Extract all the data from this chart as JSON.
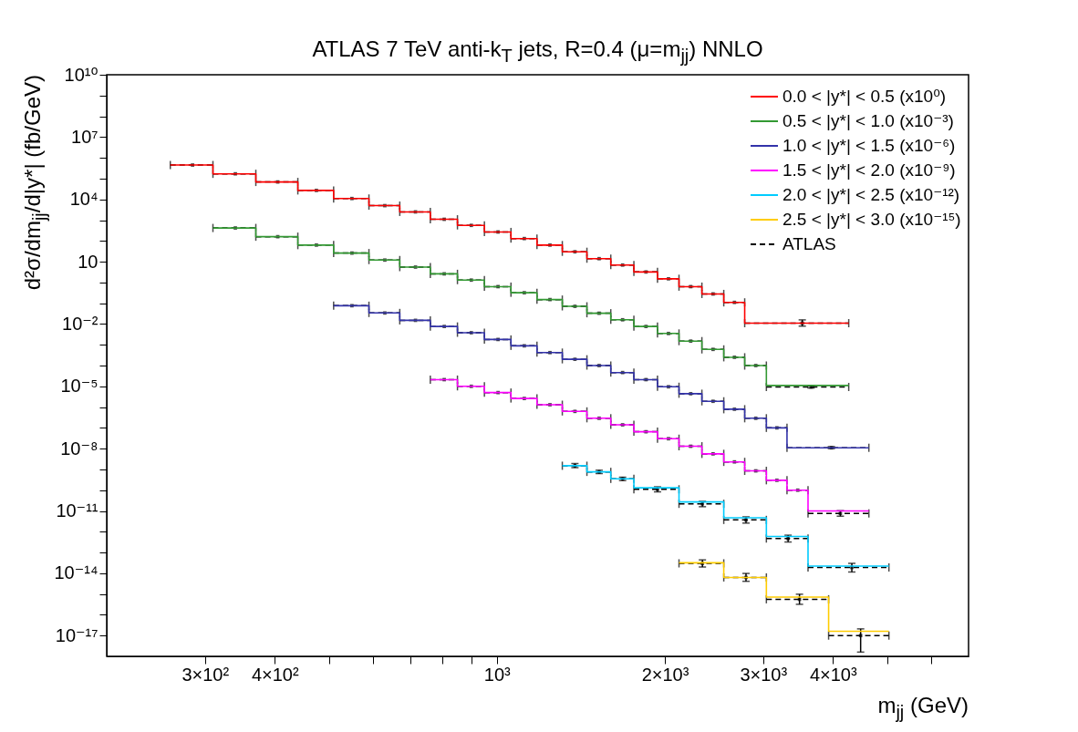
{
  "chart_data": {
    "type": "step",
    "title": "ATLAS 7 TeV anti-k$_{T}$ jets, R=0.4 (μ=m$_{jj}$) NNLO",
    "xlabel": "m$_{jj}$ (GeV)",
    "ylabel": "d²σ/dm$_{jj}$/d|y*| (fb/GeV)",
    "log": "xy",
    "grid": false,
    "legend": "top right",
    "xlim": [
      200,
      7000
    ],
    "ylim": [
      1e-18,
      10000000000.0
    ],
    "xticks": [
      {
        "value": 300,
        "label": "3×10²"
      },
      {
        "value": 400,
        "label": "4×10²"
      },
      {
        "value": 500,
        "label": null
      },
      {
        "value": 600,
        "label": null
      },
      {
        "value": 700,
        "label": null
      },
      {
        "value": 800,
        "label": null
      },
      {
        "value": 900,
        "label": null
      },
      {
        "value": 1000,
        "label": "10³"
      },
      {
        "value": 2000,
        "label": "2×10³"
      },
      {
        "value": 3000,
        "label": "3×10³"
      },
      {
        "value": 4000,
        "label": "4×10³"
      },
      {
        "value": 5000,
        "label": null
      },
      {
        "value": 6000,
        "label": null
      }
    ],
    "yticks": [
      {
        "value": 10000000000.0,
        "label": "10¹⁰"
      },
      {
        "value": 1000000000.0,
        "label": null
      },
      {
        "value": 100000000.0,
        "label": null
      },
      {
        "value": 10000000.0,
        "label": "10⁷"
      },
      {
        "value": 1000000.0,
        "label": null
      },
      {
        "value": 100000.0,
        "label": null
      },
      {
        "value": 10000.0,
        "label": "10⁴"
      },
      {
        "value": 1000,
        "label": null
      },
      {
        "value": 100,
        "label": null
      },
      10,
      {
        "value": 1,
        "label": null
      },
      {
        "value": 0.1,
        "label": null
      },
      {
        "value": 0.01,
        "label": "10⁻²"
      },
      {
        "value": 0.001,
        "label": null
      },
      {
        "value": 0.0001,
        "label": null
      },
      {
        "value": 1e-05,
        "label": "10⁻⁵"
      },
      {
        "value": 1e-06,
        "label": null
      },
      {
        "value": 1e-07,
        "label": null
      },
      {
        "value": 1e-08,
        "label": "10⁻⁸"
      },
      {
        "value": 1e-09,
        "label": null
      },
      {
        "value": 1e-10,
        "label": null
      },
      {
        "value": 1e-11,
        "label": "10⁻¹¹"
      },
      {
        "value": 1e-12,
        "label": null
      },
      {
        "value": 1e-13,
        "label": null
      },
      {
        "value": 1e-14,
        "label": "10⁻¹⁴"
      },
      {
        "value": 1e-15,
        "label": null
      },
      {
        "value": 1e-16,
        "label": null
      },
      {
        "value": 1e-17,
        "label": "10⁻¹⁷"
      }
    ],
    "series": [
      {
        "name": "0.0 < |y*| < 0.5 (x10⁰)",
        "color": "#ff0000",
        "x": [
          260,
          310,
          370,
          440,
          510,
          590,
          670,
          760,
          850,
          950,
          1060,
          1180,
          1310,
          1450,
          1600,
          1760,
          1940,
          2120,
          2330,
          2550,
          2780,
          4270
        ],
        "values": [
          450000,
          170000,
          69000,
          27000,
          11000,
          5000,
          2500,
          1100,
          560,
          270,
          130,
          63,
          30,
          14,
          6.9,
          3.2,
          1.5,
          0.63,
          0.28,
          0.11,
          0.011,
          0.011
        ]
      },
      {
        "name": "0.5 < |y*| < 1.0 (x10⁻³)",
        "color": "#339933",
        "x": [
          310,
          370,
          440,
          510,
          590,
          670,
          760,
          850,
          950,
          1060,
          1180,
          1310,
          1450,
          1600,
          1760,
          1940,
          2120,
          2330,
          2550,
          2780,
          3040,
          4270
        ],
        "values": [
          420,
          160,
          63,
          26,
          12,
          5.5,
          2.6,
          1.3,
          0.63,
          0.32,
          0.15,
          0.071,
          0.033,
          0.016,
          0.0076,
          0.0035,
          0.0015,
          0.0006,
          0.00025,
          0.0001,
          1.1e-05,
          1.1e-05
        ]
      },
      {
        "name": "1.0 < |y*| < 1.5 (x10⁻⁶)",
        "color": "#3333aa",
        "x": [
          510,
          590,
          670,
          760,
          850,
          950,
          1060,
          1180,
          1310,
          1450,
          1600,
          1760,
          1940,
          2120,
          2330,
          2550,
          2780,
          3040,
          3310,
          4640
        ],
        "values": [
          0.076,
          0.034,
          0.015,
          0.0076,
          0.0038,
          0.0018,
          0.00089,
          0.00042,
          0.0002,
          0.0001,
          4.6e-05,
          2.1e-05,
          9.5e-06,
          4.4e-06,
          1.9e-06,
          7.9e-07,
          2.9e-07,
          1e-07,
          1.1e-08,
          1.1e-08
        ]
      },
      {
        "name": "1.5 < |y*| < 2.0 (x10⁻⁹)",
        "color": "#ff00ff",
        "x": [
          760,
          850,
          950,
          1060,
          1180,
          1310,
          1450,
          1600,
          1760,
          1940,
          2120,
          2330,
          2550,
          2780,
          3040,
          3310,
          3610,
          4640
        ],
        "values": [
          2.1e-05,
          1e-05,
          5e-06,
          2.6e-06,
          1.3e-06,
          6.2e-07,
          2.9e-07,
          1.4e-07,
          6.5e-08,
          3e-08,
          1.3e-08,
          5.6e-09,
          2.3e-09,
          8.5e-10,
          3e-10,
          1e-10,
          1e-11,
          1e-11
        ]
      },
      {
        "name": "2.0 < |y*| < 2.5 (x10⁻¹²)",
        "color": "#00ccff",
        "x": [
          1310,
          1450,
          1600,
          1760,
          2120,
          2550,
          3040,
          3610,
          5040
        ],
        "values": [
          1.5e-09,
          7.6e-10,
          3.5e-10,
          1.3e-10,
          2.7e-11,
          4.7e-12,
          5.9e-13,
          2.2e-14,
          2.2e-14
        ]
      },
      {
        "name": "2.5 < |y*| < 3.0 (x10⁻¹⁵)",
        "color": "#ffcc00",
        "x": [
          2120,
          2550,
          3040,
          3930,
          5040
        ],
        "values": [
          3.2e-14,
          6.3e-15,
          7.1e-16,
          1.6e-17,
          1.6e-17
        ]
      },
      {
        "name": "ATLAS",
        "type": "scatter",
        "color": "#000000",
        "marker": "square",
        "line_style": "dashed",
        "x": [
          285,
          340,
          405,
          475,
          550,
          630,
          715,
          805,
          900,
          1005,
          1120,
          1245,
          1380,
          1525,
          1680,
          1850,
          2030,
          2225,
          2440,
          2665,
          3525,
          340,
          405,
          475,
          550,
          630,
          715,
          805,
          900,
          1005,
          1120,
          1245,
          1380,
          1525,
          1680,
          1850,
          2030,
          2225,
          2440,
          2665,
          2910,
          3655,
          550,
          630,
          715,
          805,
          900,
          1005,
          1120,
          1245,
          1380,
          1525,
          1680,
          1850,
          2030,
          2225,
          2440,
          2665,
          2910,
          3175,
          3975,
          805,
          900,
          1005,
          1120,
          1245,
          1380,
          1525,
          1680,
          1850,
          2030,
          2225,
          2440,
          2665,
          2910,
          3175,
          3460,
          4125,
          1380,
          1525,
          1680,
          1940,
          2335,
          2795,
          3325,
          4325,
          2335,
          2795,
          3485,
          4485
        ],
        "xerrors": [
          25,
          30,
          35,
          35,
          40,
          40,
          45,
          45,
          50,
          55,
          60,
          65,
          70,
          75,
          80,
          90,
          90,
          105,
          110,
          115,
          745,
          30,
          35,
          35,
          40,
          40,
          45,
          45,
          50,
          55,
          60,
          65,
          70,
          75,
          80,
          90,
          90,
          105,
          110,
          115,
          130,
          615,
          40,
          40,
          45,
          45,
          50,
          55,
          60,
          65,
          70,
          75,
          80,
          90,
          90,
          105,
          110,
          115,
          130,
          135,
          665,
          45,
          50,
          55,
          60,
          65,
          70,
          75,
          80,
          90,
          90,
          105,
          110,
          115,
          130,
          135,
          150,
          515,
          70,
          75,
          80,
          180,
          215,
          245,
          285,
          715,
          215,
          245,
          445,
          555
        ],
        "values": [
          450000,
          170000,
          69000,
          27000,
          11000,
          5000,
          2500,
          1100,
          560,
          270,
          130,
          63,
          30,
          14,
          6.9,
          3.2,
          1.5,
          0.63,
          0.28,
          0.11,
          0.011,
          420,
          160,
          63,
          26,
          12,
          5.5,
          2.6,
          1.3,
          0.63,
          0.32,
          0.15,
          0.071,
          0.033,
          0.016,
          0.0076,
          0.0035,
          0.0015,
          0.0006,
          0.00025,
          0.0001,
          9.3e-06,
          0.076,
          0.034,
          0.015,
          0.0076,
          0.0038,
          0.0018,
          0.00089,
          0.00042,
          0.0002,
          0.0001,
          4.6e-05,
          2.1e-05,
          9.5e-06,
          4.4e-06,
          1.9e-06,
          7.9e-07,
          2.9e-07,
          1e-07,
          1.1e-08,
          2.1e-05,
          1e-05,
          5e-06,
          2.6e-06,
          1.3e-06,
          6.2e-07,
          2.9e-07,
          1.4e-07,
          6.5e-08,
          3e-08,
          1.3e-08,
          5.6e-09,
          2.3e-09,
          8.5e-10,
          3e-10,
          1e-10,
          7.6e-12,
          1.5e-09,
          7.6e-10,
          3.5e-10,
          1.1e-10,
          2.2e-11,
          3.7e-12,
          4.7e-13,
          1.9e-14,
          3e-14,
          6.3e-15,
          5.6e-16,
          1e-17
        ],
        "errors": [
          null,
          null,
          null,
          null,
          null,
          null,
          null,
          null,
          null,
          null,
          null,
          null,
          null,
          null,
          null,
          null,
          null,
          null,
          null,
          null,
          [
            0.0079,
            0.0158
          ],
          null,
          null,
          null,
          null,
          null,
          null,
          null,
          null,
          null,
          null,
          null,
          null,
          null,
          null,
          null,
          null,
          null,
          null,
          null,
          null,
          [
            8.3e-06,
            1.05e-05
          ],
          null,
          null,
          null,
          null,
          null,
          null,
          null,
          null,
          null,
          null,
          null,
          null,
          null,
          null,
          null,
          null,
          null,
          null,
          [
            1e-08,
            1.25e-08
          ],
          null,
          null,
          null,
          null,
          null,
          null,
          null,
          null,
          null,
          null,
          null,
          null,
          null,
          null,
          null,
          null,
          [
            5.6e-12,
            1.03e-11
          ],
          [
            1.2e-09,
            1.9e-09
          ],
          [
            6.3e-10,
            9.1e-10
          ],
          [
            2.9e-10,
            4.2e-10
          ],
          [
            8.3e-11,
            1.45e-10
          ],
          [
            1.6e-11,
            2.9e-11
          ],
          [
            2.6e-12,
            5.2e-12
          ],
          [
            3.2e-13,
            6.8e-13
          ],
          [
            1.15e-14,
            3e-14
          ],
          [
            2e-14,
            4.4e-14
          ],
          [
            4.1e-15,
            9.8e-15
          ],
          [
            3.2e-16,
            9.8e-16
          ],
          [
            1.6e-18,
            2.1e-17
          ]
        ]
      }
    ]
  }
}
